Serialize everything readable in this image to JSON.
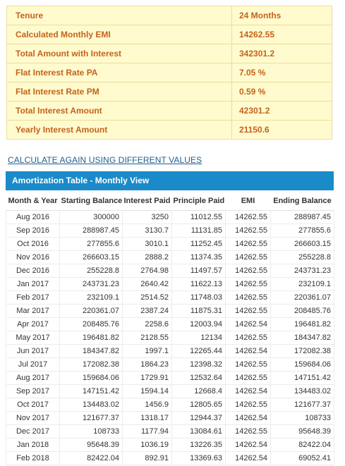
{
  "summary": [
    {
      "label": "Tenure",
      "value": "24 Months"
    },
    {
      "label": "Calculated Monthly EMI",
      "value": "14262.55"
    },
    {
      "label": "Total Amount with Interest",
      "value": "342301.2"
    },
    {
      "label": "Flat Interest Rate PA",
      "value": "7.05 %"
    },
    {
      "label": "Flat Interest Rate PM",
      "value": "0.59 %"
    },
    {
      "label": "Total Interest Amount",
      "value": "42301.2"
    },
    {
      "label": "Yearly Interest Amount",
      "value": "21150.6"
    }
  ],
  "calc_again_link": "CALCULATE AGAIN USING DIFFERENT VALUES",
  "amortization": {
    "title": "Amortization Table - Monthly View",
    "columns": [
      "Month & Year",
      "Starting Balance",
      "Interest Paid",
      "Principle Paid",
      "EMI",
      "Ending Balance"
    ],
    "rows": [
      [
        "Aug 2016",
        "300000",
        "3250",
        "11012.55",
        "14262.55",
        "288987.45"
      ],
      [
        "Sep 2016",
        "288987.45",
        "3130.7",
        "11131.85",
        "14262.55",
        "277855.6"
      ],
      [
        "Oct 2016",
        "277855.6",
        "3010.1",
        "11252.45",
        "14262.55",
        "266603.15"
      ],
      [
        "Nov 2016",
        "266603.15",
        "2888.2",
        "11374.35",
        "14262.55",
        "255228.8"
      ],
      [
        "Dec 2016",
        "255228.8",
        "2764.98",
        "11497.57",
        "14262.55",
        "243731.23"
      ],
      [
        "Jan 2017",
        "243731.23",
        "2640.42",
        "11622.13",
        "14262.55",
        "232109.1"
      ],
      [
        "Feb 2017",
        "232109.1",
        "2514.52",
        "11748.03",
        "14262.55",
        "220361.07"
      ],
      [
        "Mar 2017",
        "220361.07",
        "2387.24",
        "11875.31",
        "14262.55",
        "208485.76"
      ],
      [
        "Apr 2017",
        "208485.76",
        "2258.6",
        "12003.94",
        "14262.54",
        "196481.82"
      ],
      [
        "May 2017",
        "196481.82",
        "2128.55",
        "12134",
        "14262.55",
        "184347.82"
      ],
      [
        "Jun 2017",
        "184347.82",
        "1997.1",
        "12265.44",
        "14262.54",
        "172082.38"
      ],
      [
        "Jul 2017",
        "172082.38",
        "1864.23",
        "12398.32",
        "14262.55",
        "159684.06"
      ],
      [
        "Aug 2017",
        "159684.06",
        "1729.91",
        "12532.64",
        "14262.55",
        "147151.42"
      ],
      [
        "Sep 2017",
        "147151.42",
        "1594.14",
        "12668.4",
        "14262.54",
        "134483.02"
      ],
      [
        "Oct 2017",
        "134483.02",
        "1456.9",
        "12805.65",
        "14262.55",
        "121677.37"
      ],
      [
        "Nov 2017",
        "121677.37",
        "1318.17",
        "12944.37",
        "14262.54",
        "108733"
      ],
      [
        "Dec 2017",
        "108733",
        "1177.94",
        "13084.61",
        "14262.55",
        "95648.39"
      ],
      [
        "Jan 2018",
        "95648.39",
        "1036.19",
        "13226.35",
        "14262.54",
        "82422.04"
      ],
      [
        "Feb 2018",
        "82422.04",
        "892.91",
        "13369.63",
        "14262.54",
        "69052.41"
      ]
    ]
  }
}
